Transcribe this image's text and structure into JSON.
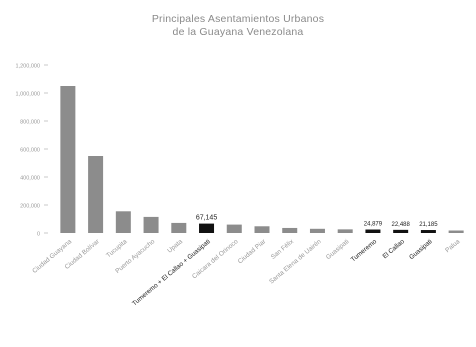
{
  "chart_data": {
    "type": "bar",
    "title_lines": [
      "Principales Asentamientos Urbanos",
      "de la Guayana Venezolana"
    ],
    "xlabel": "",
    "ylabel": "",
    "ylim": [
      0,
      1250000
    ],
    "y_ticks": [
      {
        "value": 0,
        "label": "0"
      },
      {
        "value": 200000,
        "label": "200,000"
      },
      {
        "value": 400000,
        "label": "400,000"
      },
      {
        "value": 600000,
        "label": "600,000"
      },
      {
        "value": 800000,
        "label": "800,000"
      },
      {
        "value": 1000000,
        "label": "1,000,000"
      },
      {
        "value": 1200000,
        "label": "1,200,000"
      }
    ],
    "grid": false,
    "categories": [
      "Ciudad Guayana",
      "Ciudad Bolívar",
      "Tucupita",
      "Puerto Ayacucho",
      "Upata",
      "Tumeremo + El Callao + Guasipati",
      "Caicara del Orinoco",
      "Ciudad Piar",
      "San Félix",
      "Santa Elena de Uairén",
      "Guasipati",
      "Tumeremo",
      "El Callao",
      "Guasipati",
      "Palua"
    ],
    "values": [
      1050000,
      550000,
      155000,
      115000,
      72000,
      67145,
      60000,
      48000,
      36000,
      30000,
      26000,
      24879,
      22488,
      21185,
      15000
    ],
    "data_labels": [
      "",
      "",
      "",
      "",
      "",
      "67,145",
      "",
      "",
      "",
      "",
      "",
      "24,879",
      "22,488",
      "21,185",
      ""
    ],
    "highlighted": [
      false,
      false,
      false,
      false,
      false,
      true,
      false,
      false,
      false,
      false,
      false,
      true,
      true,
      true,
      false
    ],
    "colors": {
      "bar": "#8c8c8c",
      "highlight": "#111111",
      "text": "#9a9a9a",
      "highlight_text": "#222222"
    }
  }
}
